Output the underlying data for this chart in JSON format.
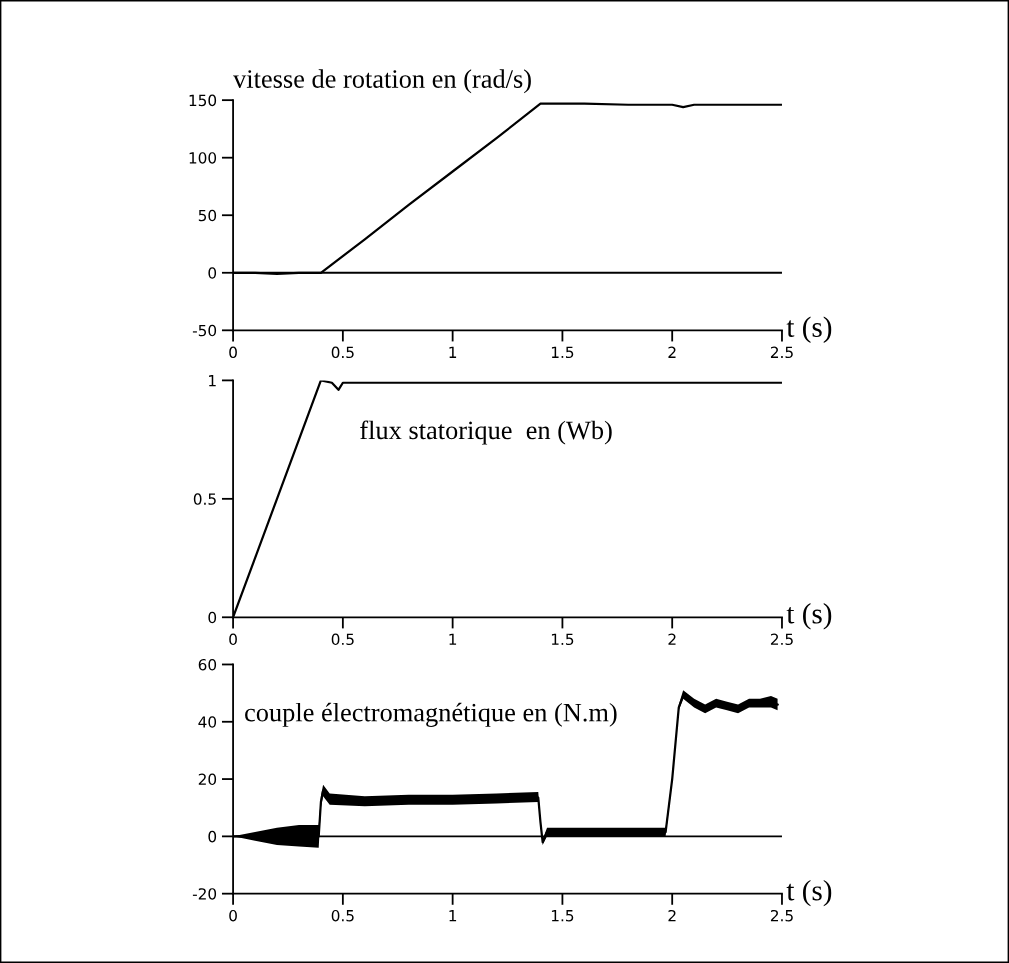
{
  "chart_data": [
    {
      "type": "line",
      "title": "vitesse de rotation en (rad/s)",
      "xlabel": "t (s)",
      "xlim": [
        0,
        2.5
      ],
      "xticks": [
        0,
        0.5,
        1,
        1.5,
        2,
        2.5
      ],
      "ylim": [
        -50,
        150
      ],
      "yticks": [
        -50,
        0,
        50,
        100,
        150
      ],
      "grid": false,
      "legend": false,
      "ref_lines": [
        {
          "axis": "y",
          "value": 0,
          "color": "#000000"
        }
      ],
      "series": [
        {
          "color": "#000000",
          "x": [
            0,
            0.1,
            0.2,
            0.3,
            0.4,
            0.6,
            0.8,
            1.0,
            1.2,
            1.4,
            1.6,
            1.8,
            2.0,
            2.05,
            2.1,
            2.3,
            2.5
          ],
          "values": [
            0,
            0,
            -1,
            0,
            0,
            29,
            59,
            88,
            117,
            147,
            147,
            146,
            146,
            144,
            146,
            146,
            146
          ]
        }
      ]
    },
    {
      "type": "line",
      "title": "flux statorique  en (Wb)",
      "xlabel": "t (s)",
      "xlim": [
        0,
        2.5
      ],
      "xticks": [
        0,
        0.5,
        1,
        1.5,
        2,
        2.5
      ],
      "ylim": [
        0,
        1
      ],
      "yticks": [
        0,
        0.5,
        1
      ],
      "grid": false,
      "legend": false,
      "series": [
        {
          "color": "#000000",
          "x": [
            0,
            0.1,
            0.2,
            0.3,
            0.4,
            0.45,
            0.48,
            0.5,
            0.7,
            1.0,
            1.5,
            2.0,
            2.5
          ],
          "values": [
            0,
            0.25,
            0.5,
            0.75,
            1.0,
            0.99,
            0.96,
            0.99,
            0.99,
            0.99,
            0.99,
            0.99,
            0.99
          ]
        }
      ]
    },
    {
      "type": "line",
      "title": "couple électromagnétique en (N.m)",
      "xlabel": "t (s)",
      "xlim": [
        0,
        2.5
      ],
      "xticks": [
        0,
        0.5,
        1,
        1.5,
        2,
        2.5
      ],
      "ylim": [
        -20,
        60
      ],
      "yticks": [
        -20,
        0,
        20,
        40,
        60
      ],
      "grid": false,
      "legend": false,
      "ref_lines": [
        {
          "axis": "y",
          "value": 0,
          "color": "#000000"
        }
      ],
      "series": [
        {
          "color": "#000000",
          "x": [
            0,
            0.1,
            0.2,
            0.3,
            0.39,
            0.4,
            0.41,
            0.44,
            0.6,
            0.8,
            1.0,
            1.2,
            1.39,
            1.4,
            1.41,
            1.43,
            1.6,
            1.8,
            1.97,
            2.0,
            2.03,
            2.05,
            2.1,
            2.15,
            2.2,
            2.25,
            2.3,
            2.35,
            2.4,
            2.45,
            2.48
          ],
          "values": [
            0,
            0,
            0,
            0,
            0,
            12,
            16,
            13,
            12,
            12.5,
            12.5,
            13,
            13.5,
            5,
            -2,
            1.5,
            1.5,
            1.5,
            1.5,
            20,
            45,
            49,
            46,
            44,
            46,
            45,
            44,
            46,
            46,
            47,
            46
          ],
          "lower": [
            0,
            -1.5,
            -3,
            -3.5,
            -4,
            10,
            14,
            11,
            10.5,
            11,
            11,
            11.5,
            12,
            4,
            -3,
            0,
            0,
            0,
            0,
            19,
            44,
            48,
            45,
            43,
            45,
            44,
            43,
            45,
            45,
            45,
            44
          ],
          "upper": [
            0,
            1.5,
            3,
            4,
            4,
            14,
            18,
            15,
            14,
            14.5,
            14.5,
            15,
            15.5,
            6,
            -1,
            3,
            3,
            3,
            3,
            21,
            46,
            51,
            48,
            46,
            48,
            47,
            46,
            48,
            48,
            49,
            48
          ]
        }
      ]
    }
  ]
}
